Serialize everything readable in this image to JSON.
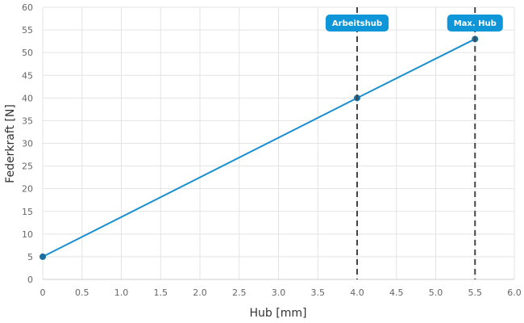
{
  "chart_data": {
    "type": "line",
    "xlabel": "Hub [mm]",
    "ylabel": "Federkraft [N]",
    "xlim": [
      0,
      6
    ],
    "ylim": [
      0,
      60
    ],
    "x_ticks": [
      "0",
      "0.5",
      "1.0",
      "1.5",
      "2.0",
      "2.5",
      "3.0",
      "3.5",
      "4.0",
      "4.5",
      "5.0",
      "5.5",
      "6.0"
    ],
    "y_ticks": [
      "0",
      "5",
      "10",
      "15",
      "20",
      "25",
      "30",
      "35",
      "40",
      "45",
      "50",
      "55",
      "60"
    ],
    "grid": true,
    "series": [
      {
        "x": [
          0,
          4.0,
          5.5
        ],
        "y": [
          5,
          40,
          53
        ],
        "color": "#1a8fd1"
      }
    ],
    "markers": [
      {
        "x": 4.0,
        "label": "Arbeitshub"
      },
      {
        "x": 5.5,
        "label": "Max. Hub"
      }
    ],
    "colors": {
      "line": "#1a8fd1",
      "point": "#1a6fa0",
      "badge": "#0e96d8",
      "marker_line": "#444444",
      "grid": "#e3e3e3"
    }
  }
}
